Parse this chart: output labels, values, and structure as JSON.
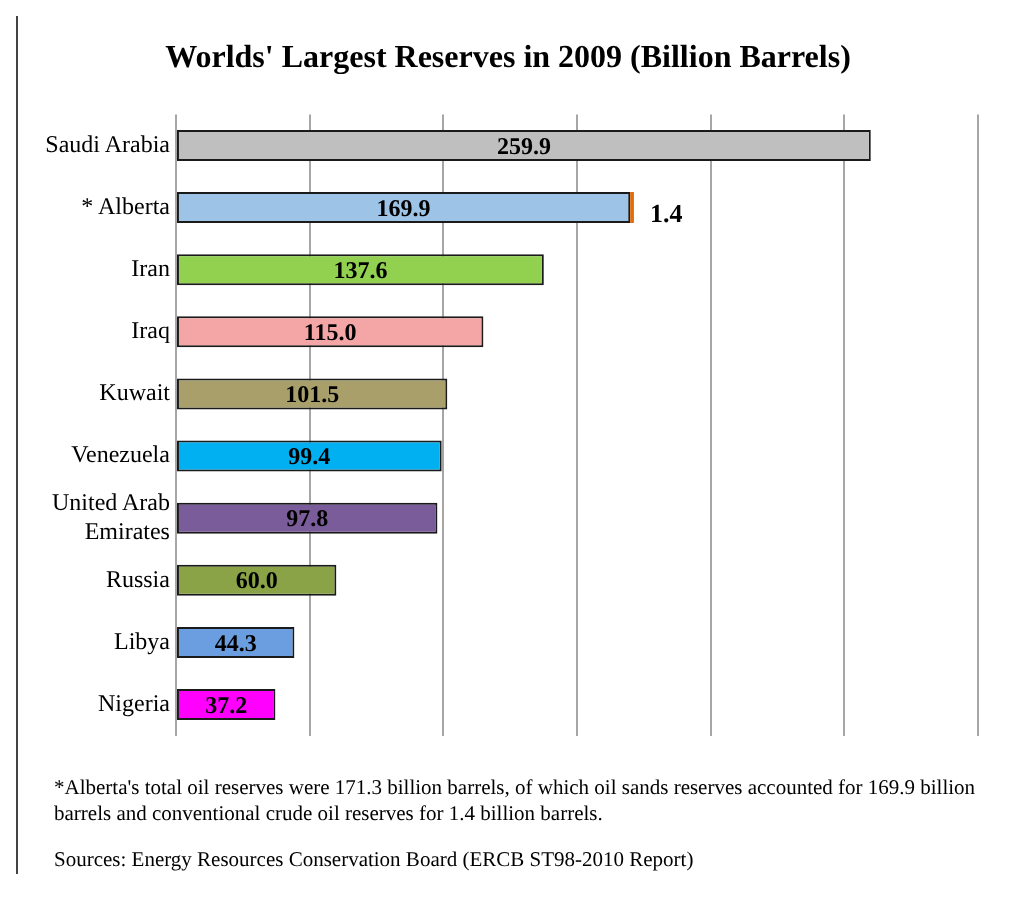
{
  "chart_data": {
    "type": "bar",
    "orientation": "horizontal",
    "stacked": true,
    "title": "Worlds' Largest Reserves in 2009 (Billion Barrels)",
    "categories": [
      "Saudi Arabia",
      "* Alberta",
      "Iran",
      "Iraq",
      "Kuwait",
      "Venezuela",
      "United Arab Emirates",
      "Russia",
      "Libya",
      "Nigeria"
    ],
    "series": [
      {
        "colors": [
          "#bfbfbf",
          "#9dc3e6",
          "#92d050",
          "#f4a6a6",
          "#a89f6a",
          "#00b0f0",
          "#7a5c9a",
          "#8aa347",
          "#6a9ee0",
          "#ff00ff"
        ],
        "values": [
          259.9,
          169.9,
          137.6,
          115.0,
          101.5,
          99.4,
          97.8,
          60.0,
          44.3,
          37.2
        ],
        "value_labels": [
          "259.9",
          "169.9",
          "137.6",
          "115.0",
          "101.5",
          "99.4",
          "97.8",
          "60.0",
          "44.3",
          "37.2"
        ]
      },
      {
        "color": "#e36c0a",
        "values": [
          null,
          1.4,
          null,
          null,
          null,
          null,
          null,
          null,
          null,
          null
        ],
        "value_labels": [
          null,
          "1.4",
          null,
          null,
          null,
          null,
          null,
          null,
          null,
          null
        ]
      }
    ],
    "tick_labels": "y",
    "grid": "x",
    "legend": false,
    "annotations": [
      "*Alberta's total oil reserves were 171.3 billion barrels, of which oil sands reserves accounted for 169.9 billion barrels and conventional crude oil reserves for 1.4 billion barrels.",
      "Sources: Energy Resources Conservation Board  (ERCB ST98-2010 Report)"
    ]
  }
}
